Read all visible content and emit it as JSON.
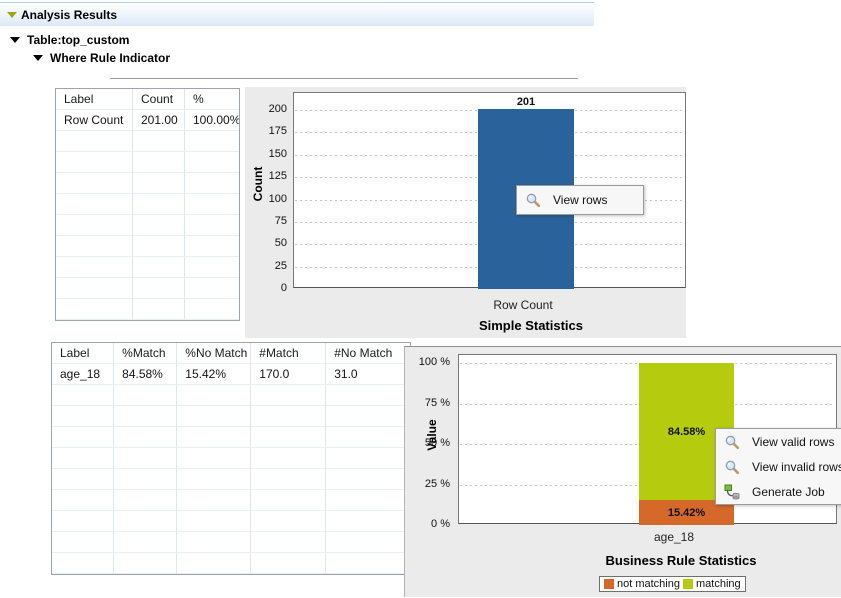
{
  "header": {
    "label": "Analysis Results"
  },
  "tree": {
    "table_label": "Table:top_custom",
    "rule_label": "Where Rule Indicator"
  },
  "table1": {
    "headers": [
      "Label",
      "Count",
      "%"
    ],
    "rows": [
      [
        "Row Count",
        "201.00",
        "100.00%"
      ]
    ]
  },
  "table2": {
    "headers": [
      "Label",
      "%Match",
      "%No Match",
      "#Match",
      "#No Match"
    ],
    "rows": [
      [
        "age_18",
        "84.58%",
        "15.42%",
        "170.0",
        "31.0"
      ]
    ]
  },
  "menu1": {
    "items": [
      {
        "icon": "magnifier-icon",
        "label": "View rows"
      }
    ]
  },
  "menu2": {
    "items": [
      {
        "icon": "magnifier-icon",
        "label": "View valid rows"
      },
      {
        "icon": "magnifier-icon",
        "label": "View invalid rows"
      },
      {
        "icon": "generate-job-icon",
        "label": "Generate Job"
      }
    ]
  },
  "colors": {
    "bar_blue": "#2a639b",
    "matching_green": "#b5cb0e",
    "not_matching_orange": "#d5692a",
    "panel_gray": "#ebebeb",
    "header_triangle_olive": "#9aa70e"
  },
  "chart_data": [
    {
      "type": "bar",
      "title": "Simple Statistics",
      "ylabel": "Count",
      "xlabel": "",
      "categories": [
        "Row Count"
      ],
      "values": [
        201
      ],
      "bar_labels": [
        "201"
      ],
      "bar_color": "#2a639b",
      "ylim": [
        0,
        200
      ],
      "yticks": [
        0,
        25,
        50,
        75,
        100,
        125,
        150,
        175,
        200
      ],
      "ytick_labels": [
        "0",
        "25",
        "50",
        "75",
        "100",
        "125",
        "150",
        "175",
        "200"
      ],
      "grid": "dotted-horizontal",
      "legend": "none"
    },
    {
      "type": "stacked-bar",
      "title": "Business Rule Statistics",
      "ylabel": "Value",
      "xlabel": "",
      "categories": [
        "age_18"
      ],
      "series": [
        {
          "name": "not matching",
          "values": [
            15.42
          ],
          "label": "15.42%",
          "color": "#d5692a"
        },
        {
          "name": "matching",
          "values": [
            84.58
          ],
          "label": "84.58%",
          "color": "#b5cb0e"
        }
      ],
      "ylim": [
        0,
        100
      ],
      "yticks": [
        0,
        25,
        50,
        75,
        100
      ],
      "ytick_labels": [
        "0 %",
        "25 %",
        "50 %",
        "75 %",
        "100 %"
      ],
      "grid": "dotted-horizontal",
      "legend_position": "bottom"
    }
  ]
}
